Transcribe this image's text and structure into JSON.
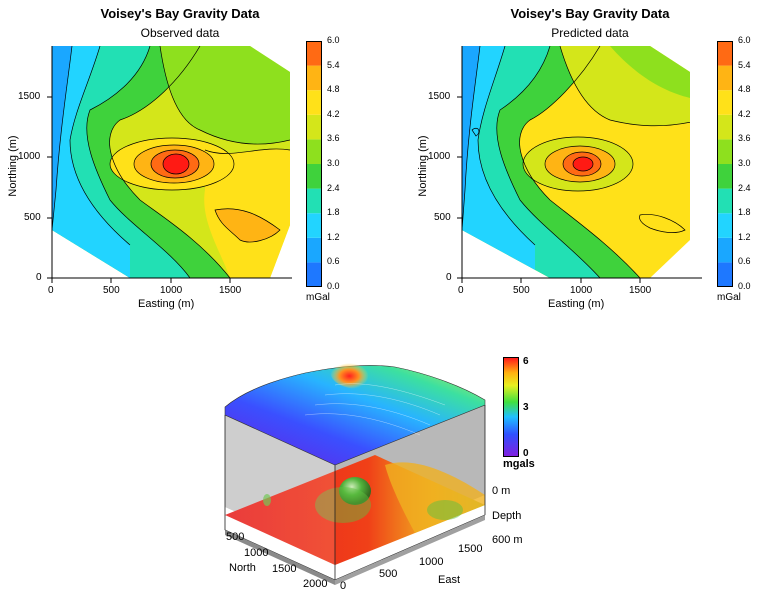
{
  "chart_data": [
    {
      "type": "contour",
      "title": "Voisey's Bay Gravity Data",
      "subtitle": "Observed data",
      "xlabel": "Easting (m)",
      "ylabel": "Northing (m)",
      "xlim": [
        0,
        1900
      ],
      "ylim": [
        0,
        1900
      ],
      "x_ticks": [
        "0",
        "500",
        "1000",
        "1500"
      ],
      "y_ticks": [
        "0",
        "500",
        "1000",
        "1500"
      ],
      "colorbar": {
        "label": "mGal",
        "levels": [
          "0.0",
          "0.6",
          "1.2",
          "1.8",
          "2.4",
          "3.0",
          "3.6",
          "4.2",
          "4.8",
          "5.4",
          "6.0"
        ],
        "colors": [
          "#1e78ff",
          "#1aa7ff",
          "#22d4ff",
          "#22e0b4",
          "#3fd23c",
          "#8ee01e",
          "#d4e61a",
          "#ffe119",
          "#ffb414",
          "#ff6a14"
        ]
      },
      "peak": {
        "x": 1050,
        "y": 950,
        "value": 6.0
      }
    },
    {
      "type": "contour",
      "title": "Voisey's Bay Gravity Data",
      "subtitle": "Predicted data",
      "xlabel": "Easting (m)",
      "ylabel": "Northing (m)",
      "xlim": [
        0,
        1900
      ],
      "ylim": [
        0,
        1900
      ],
      "x_ticks": [
        "0",
        "500",
        "1000",
        "1500"
      ],
      "y_ticks": [
        "0",
        "500",
        "1000",
        "1500"
      ],
      "colorbar": {
        "label": "mGal",
        "levels": [
          "0.0",
          "0.6",
          "1.2",
          "1.8",
          "2.4",
          "3.0",
          "3.6",
          "4.2",
          "4.8",
          "5.4",
          "6.0"
        ],
        "colors": [
          "#1e78ff",
          "#1aa7ff",
          "#22d4ff",
          "#22e0b4",
          "#3fd23c",
          "#8ee01e",
          "#d4e61a",
          "#ffe119",
          "#ffb414",
          "#ff6a14"
        ]
      },
      "peak": {
        "x": 1000,
        "y": 950,
        "value": 5.8
      }
    },
    {
      "type": "3d-volume",
      "colorbar": {
        "label": "mgals",
        "ticks": [
          "6",
          "3",
          "0"
        ]
      },
      "north_label": "North",
      "north_ticks": [
        "500",
        "1000",
        "1500",
        "2000"
      ],
      "east_label": "East",
      "east_ticks": [
        "0",
        "500",
        "1000",
        "1500"
      ],
      "depth_label": "Depth",
      "depth_ticks": [
        "0 m",
        "600 m"
      ]
    }
  ]
}
